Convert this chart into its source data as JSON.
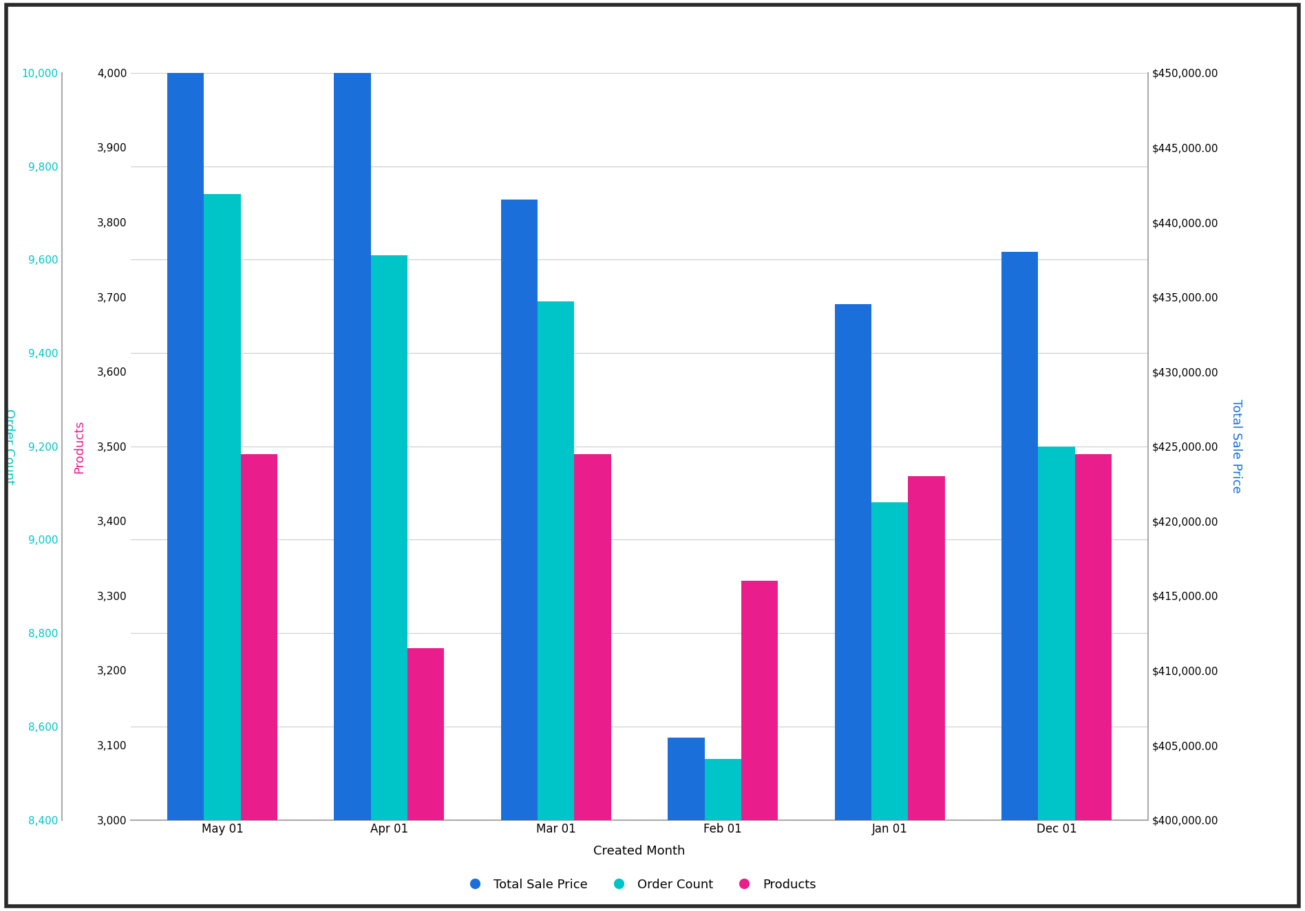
{
  "categories": [
    "May 01",
    "Apr 01",
    "Mar 01",
    "Feb 01",
    "Jan 01",
    "Dec 01"
  ],
  "total_sale_price": [
    450000,
    450000,
    441500,
    405500,
    434500,
    438000
  ],
  "order_count": [
    9740,
    9610,
    9510,
    8530,
    9080,
    9200
  ],
  "products": [
    3490,
    3230,
    3490,
    3320,
    3460,
    3490
  ],
  "color_blue": "#1a6fdb",
  "color_teal": "#00c5c8",
  "color_pink": "#e91e8c",
  "ylabel_left_products": "Products",
  "ylabel_left_orders": "Order Count",
  "ylabel_right": "Total Sale Price",
  "xlabel": "Created Month",
  "ylim_products": [
    3000,
    4000
  ],
  "ylim_orders": [
    8400,
    10000
  ],
  "ylim_price": [
    400000,
    450000
  ],
  "yticks_products": [
    3000,
    3100,
    3200,
    3300,
    3400,
    3500,
    3600,
    3700,
    3800,
    3900,
    4000
  ],
  "yticks_orders": [
    8400,
    8600,
    8800,
    9000,
    9200,
    9400,
    9600,
    9800,
    10000
  ],
  "yticks_price": [
    400000,
    405000,
    410000,
    415000,
    420000,
    425000,
    430000,
    435000,
    440000,
    445000,
    450000
  ],
  "background_color": "#ffffff",
  "border_color": "#2b2b2b",
  "grid_color": "#cccccc",
  "legend_dot_size": 12,
  "bar_width": 0.22
}
